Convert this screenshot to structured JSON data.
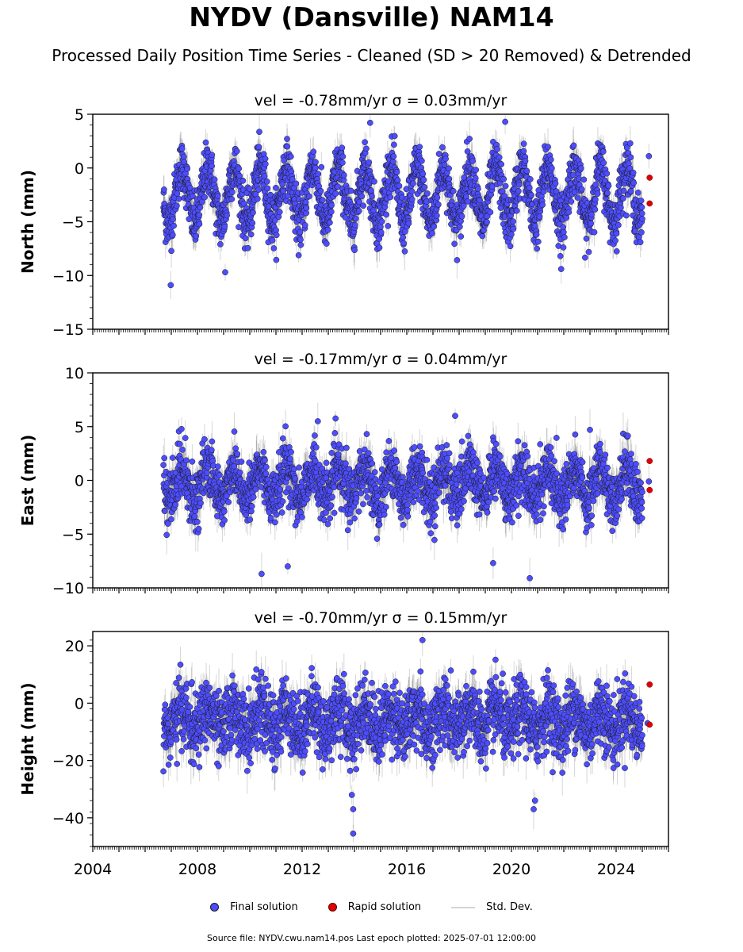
{
  "title": "NYDV (Dansville) NAM14",
  "subtitle": "Processed Daily Position Time Series - Cleaned (SD > 20 Removed) & Detrended",
  "legend": {
    "final": "Final solution",
    "rapid": "Rapid solution",
    "std": "Std. Dev."
  },
  "footer": "Source file: NYDV.cwu.nam14.pos  Last epoch plotted: 2025-07-01 12:00:00",
  "colors": {
    "final": "#4d4dff",
    "rapid": "#e00000",
    "std": "#d4d4d4"
  },
  "chart_data": [
    {
      "type": "scatter",
      "title": "vel = -0.78mm/yr   σ = 0.03mm/yr",
      "ylabel": "North (mm)",
      "xlabel": "",
      "xlim": [
        2004.0,
        2026.0
      ],
      "ylim": [
        -15,
        5
      ],
      "yticks": [
        -15,
        -10,
        -5,
        0,
        5
      ],
      "xticks": [
        2004,
        2008,
        2012,
        2016,
        2020,
        2024
      ],
      "show_xtick_labels": false,
      "final_solution": {
        "time_range": [
          2006.7,
          2025.0
        ],
        "annual_amplitude": 2.6,
        "mean": -2.5,
        "noise": 1.2,
        "sigma": 1.0,
        "outliers": [
          {
            "x": 2006.98,
            "y": -10.9
          },
          {
            "x": 2009.06,
            "y": -9.7
          },
          {
            "x": 2019.76,
            "y": 4.3
          },
          {
            "x": 2014.6,
            "y": 4.2
          },
          {
            "x": 2021.9,
            "y": -9.4
          },
          {
            "x": 2025.25,
            "y": 1.1
          }
        ]
      },
      "rapid_solution": [
        {
          "x": 2025.28,
          "y": -0.9
        },
        {
          "x": 2025.28,
          "y": -3.3
        }
      ]
    },
    {
      "type": "scatter",
      "title": "vel = -0.17mm/yr   σ = 0.04mm/yr",
      "ylabel": "East (mm)",
      "xlabel": "",
      "xlim": [
        2004.0,
        2026.0
      ],
      "ylim": [
        -10,
        10
      ],
      "yticks": [
        -10,
        -5,
        0,
        5,
        10
      ],
      "xticks": [
        2004,
        2008,
        2012,
        2016,
        2020,
        2024
      ],
      "show_xtick_labels": false,
      "final_solution": {
        "time_range": [
          2006.7,
          2025.0
        ],
        "annual_amplitude": 1.5,
        "mean": -0.3,
        "noise": 1.3,
        "sigma": 1.1,
        "outliers": [
          {
            "x": 2012.6,
            "y": 5.5
          },
          {
            "x": 2017.85,
            "y": 6.0
          },
          {
            "x": 2010.45,
            "y": -8.7
          },
          {
            "x": 2011.45,
            "y": -8.0
          },
          {
            "x": 2019.3,
            "y": -7.7
          },
          {
            "x": 2020.7,
            "y": -9.1
          },
          {
            "x": 2023.0,
            "y": 4.7
          },
          {
            "x": 2025.25,
            "y": -0.1
          }
        ]
      },
      "rapid_solution": [
        {
          "x": 2025.28,
          "y": 1.8
        },
        {
          "x": 2025.28,
          "y": -0.9
        }
      ]
    },
    {
      "type": "scatter",
      "title": "vel = -0.70mm/yr   σ = 0.15mm/yr",
      "ylabel": "Height (mm)",
      "xlabel": "",
      "xlim": [
        2004.0,
        2026.0
      ],
      "ylim": [
        -50,
        25
      ],
      "yticks": [
        -40,
        -20,
        0,
        20
      ],
      "xticks": [
        2004,
        2008,
        2012,
        2016,
        2020,
        2024
      ],
      "show_xtick_labels": true,
      "final_solution": {
        "time_range": [
          2006.7,
          2025.0
        ],
        "annual_amplitude": 4.0,
        "mean": -6.0,
        "noise": 6.0,
        "sigma": 4.5,
        "outliers": [
          {
            "x": 2013.95,
            "y": -45.5
          },
          {
            "x": 2013.95,
            "y": -37.0
          },
          {
            "x": 2013.9,
            "y": -32.0
          },
          {
            "x": 2016.6,
            "y": 22.0
          },
          {
            "x": 2020.85,
            "y": -37.0
          },
          {
            "x": 2020.9,
            "y": -34.0
          },
          {
            "x": 2025.2,
            "y": -7.0
          }
        ]
      },
      "rapid_solution": [
        {
          "x": 2025.28,
          "y": 6.5
        },
        {
          "x": 2025.28,
          "y": -7.5
        }
      ]
    }
  ]
}
